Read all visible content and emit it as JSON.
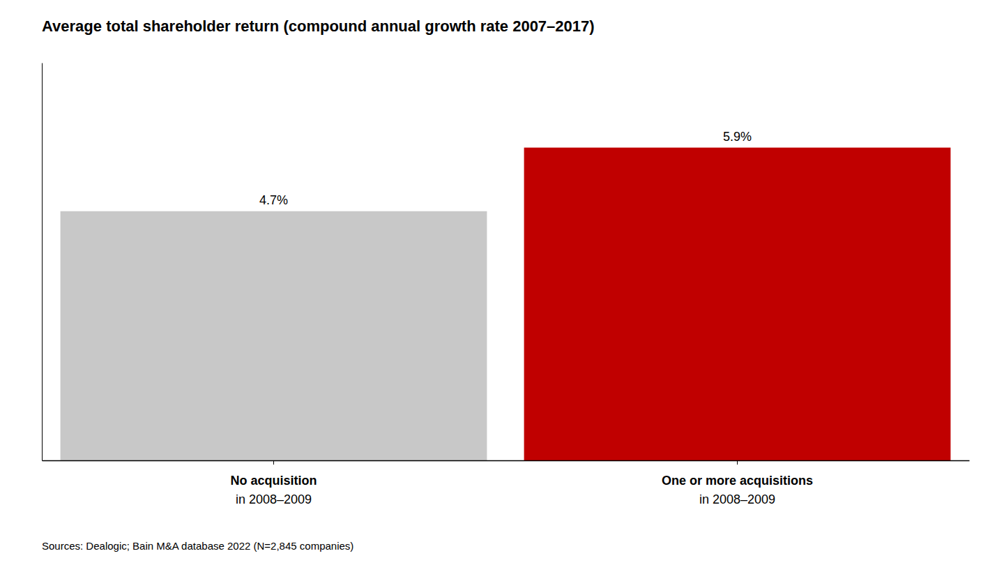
{
  "chart_data": {
    "type": "bar",
    "title": "Average total shareholder return (compound annual growth rate 2007–2017)",
    "categories": [
      [
        "No acquisition",
        "in 2008–2009"
      ],
      [
        "One or more acquisitions",
        "in 2008–2009"
      ]
    ],
    "values": [
      4.7,
      5.9
    ],
    "value_labels": [
      "4.7%",
      "5.9%"
    ],
    "data_labels": true,
    "colors": [
      "#c8c8c8",
      "#c00000"
    ],
    "ylim": [
      0,
      7.5
    ],
    "grid": false,
    "tick_labels": "x",
    "annotations": [
      "Sources: Dealogic; Bain M&A database 2022 (N=2,845 companies)"
    ]
  }
}
